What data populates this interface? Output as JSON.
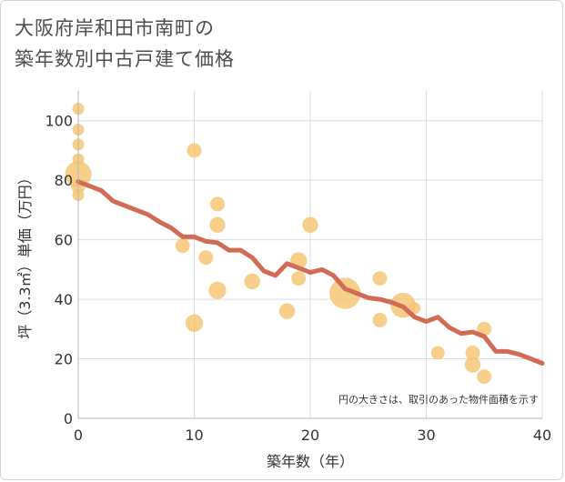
{
  "title_lines": [
    "大阪府岸和田市南町の",
    "築年数別中古戸建て価格"
  ],
  "chart_data": {
    "type": "scatter",
    "title": "大阪府岸和田市南町の築年数別中古戸建て価格",
    "xlabel": "築年数（年）",
    "ylabel": "坪（3.3㎡）単価（万円）",
    "xlim": [
      0,
      40
    ],
    "ylim": [
      0,
      110
    ],
    "xticks": [
      0,
      10,
      20,
      30,
      40
    ],
    "yticks": [
      0,
      20,
      40,
      60,
      80,
      100
    ],
    "grid": true,
    "annotation": "円の大きさは、取引のあった物件面積を示す",
    "colors": {
      "bubble": "#f5c36e",
      "line": "#d26b55",
      "grid": "#d7dde3"
    },
    "bubbles": [
      {
        "x": 0,
        "y": 104,
        "size": 1
      },
      {
        "x": 0,
        "y": 97,
        "size": 1
      },
      {
        "x": 0,
        "y": 92,
        "size": 1
      },
      {
        "x": 0,
        "y": 87,
        "size": 1
      },
      {
        "x": 0,
        "y": 82,
        "size": 5
      },
      {
        "x": 0,
        "y": 78,
        "size": 1.5
      },
      {
        "x": 0,
        "y": 75,
        "size": 1
      },
      {
        "x": 10,
        "y": 90,
        "size": 1.5
      },
      {
        "x": 12,
        "y": 72,
        "size": 1.5
      },
      {
        "x": 12,
        "y": 65,
        "size": 1.8
      },
      {
        "x": 9,
        "y": 58,
        "size": 1.5
      },
      {
        "x": 11,
        "y": 54,
        "size": 1.5
      },
      {
        "x": 12,
        "y": 43,
        "size": 2.2
      },
      {
        "x": 10,
        "y": 32,
        "size": 2.2
      },
      {
        "x": 15,
        "y": 46,
        "size": 1.8
      },
      {
        "x": 18,
        "y": 36,
        "size": 1.8
      },
      {
        "x": 19,
        "y": 53,
        "size": 2
      },
      {
        "x": 19,
        "y": 47,
        "size": 1.5
      },
      {
        "x": 20,
        "y": 65,
        "size": 1.8
      },
      {
        "x": 23,
        "y": 42,
        "size": 7
      },
      {
        "x": 26,
        "y": 47,
        "size": 1.5
      },
      {
        "x": 26,
        "y": 33,
        "size": 1.5
      },
      {
        "x": 28,
        "y": 38,
        "size": 4.5
      },
      {
        "x": 29,
        "y": 37,
        "size": 1
      },
      {
        "x": 31,
        "y": 22,
        "size": 1.3
      },
      {
        "x": 34,
        "y": 22,
        "size": 1.5
      },
      {
        "x": 34,
        "y": 18,
        "size": 1.8
      },
      {
        "x": 35,
        "y": 30,
        "size": 1.5
      },
      {
        "x": 35,
        "y": 14,
        "size": 1.5
      }
    ],
    "trend": {
      "x": [
        0,
        1,
        2,
        3,
        4,
        5,
        6,
        7,
        8,
        9,
        10,
        11,
        12,
        13,
        14,
        15,
        16,
        17,
        18,
        19,
        20,
        21,
        22,
        23,
        24,
        25,
        26,
        27,
        28,
        29,
        30,
        31,
        32,
        33,
        34,
        35,
        36,
        37,
        38,
        39,
        40
      ],
      "y": [
        79.5,
        78,
        76.5,
        73,
        71.5,
        70,
        68.5,
        66,
        64,
        61,
        61,
        59.5,
        59,
        56.5,
        56.5,
        54,
        49.5,
        48,
        52,
        50.5,
        49,
        50,
        48,
        43.5,
        42,
        40.5,
        40,
        39,
        37.5,
        34,
        32.5,
        34,
        30.5,
        28.5,
        29,
        27.5,
        22.5,
        22.5,
        21.5,
        20,
        18.5
      ]
    }
  }
}
